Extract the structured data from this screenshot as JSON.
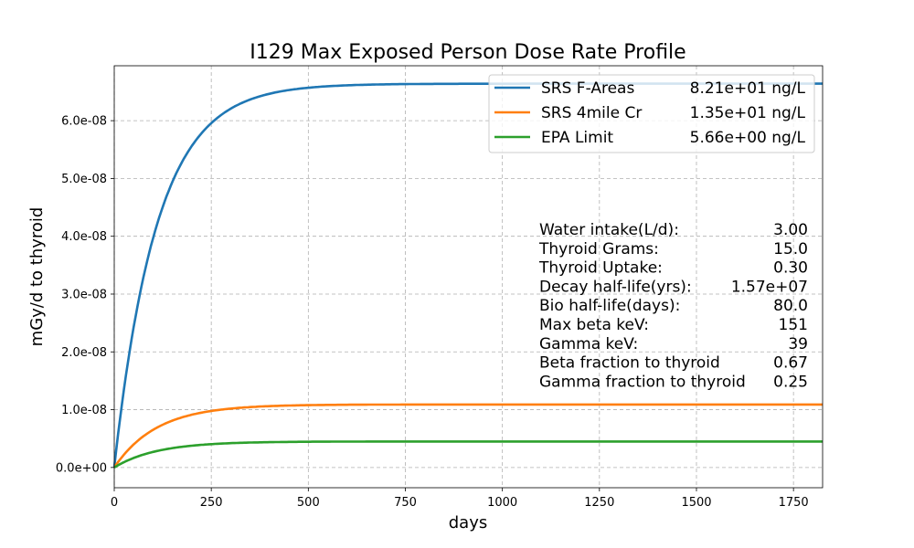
{
  "chart_data": {
    "type": "line",
    "title": "I129 Max Exposed Person Dose Rate Profile",
    "xlabel": "days",
    "ylabel": "mGy/d to thyroid",
    "xlim": [
      0,
      1825
    ],
    "ylim": [
      -3.5e-09,
      6.95e-08
    ],
    "grid": true,
    "x_ticks": [
      0,
      250,
      500,
      750,
      1000,
      1250,
      1500,
      1750
    ],
    "x_tick_labels": [
      "0",
      "250",
      "500",
      "750",
      "1000",
      "1250",
      "1500",
      "1750"
    ],
    "y_ticks": [
      0,
      1e-08,
      2e-08,
      3e-08,
      4e-08,
      5e-08,
      6e-08
    ],
    "y_tick_labels": [
      "0.0e+00",
      "1.0e-08",
      "2.0e-08",
      "3.0e-08",
      "4.0e-08",
      "5.0e-08",
      "6.0e-08"
    ],
    "series_model": "y = plateau * (1 - exp(-k * day))",
    "series": [
      {
        "name": "SRS F-Areas",
        "concentration": "8.21e+01 ng/L",
        "color": "#1f77b4",
        "plateau": 6.64e-08,
        "k": 0.0091
      },
      {
        "name": "SRS 4mile Cr",
        "concentration": "1.35e+01 ng/L",
        "color": "#ff7f0e",
        "plateau": 1.09e-08,
        "k": 0.0091
      },
      {
        "name": "EPA Limit",
        "concentration": "5.66e+00 ng/L",
        "color": "#2ca02c",
        "plateau": 4.5e-09,
        "k": 0.0091
      }
    ],
    "legend": "top-right",
    "annotation": [
      {
        "label": "Water intake(L/d):",
        "value": "3.00"
      },
      {
        "label": "Thyroid Grams:",
        "value": "15.0"
      },
      {
        "label": "Thyroid Uptake:",
        "value": "0.30"
      },
      {
        "label": "Decay half-life(yrs):",
        "value": "1.57e+07"
      },
      {
        "label": "Bio half-life(days):",
        "value": "80.0"
      },
      {
        "label": "Max beta keV:",
        "value": "151"
      },
      {
        "label": "Gamma keV:",
        "value": "39"
      },
      {
        "label": "Beta fraction to thyroid",
        "value": "0.67"
      },
      {
        "label": "Gamma fraction to thyroid",
        "value": "0.25"
      }
    ]
  }
}
